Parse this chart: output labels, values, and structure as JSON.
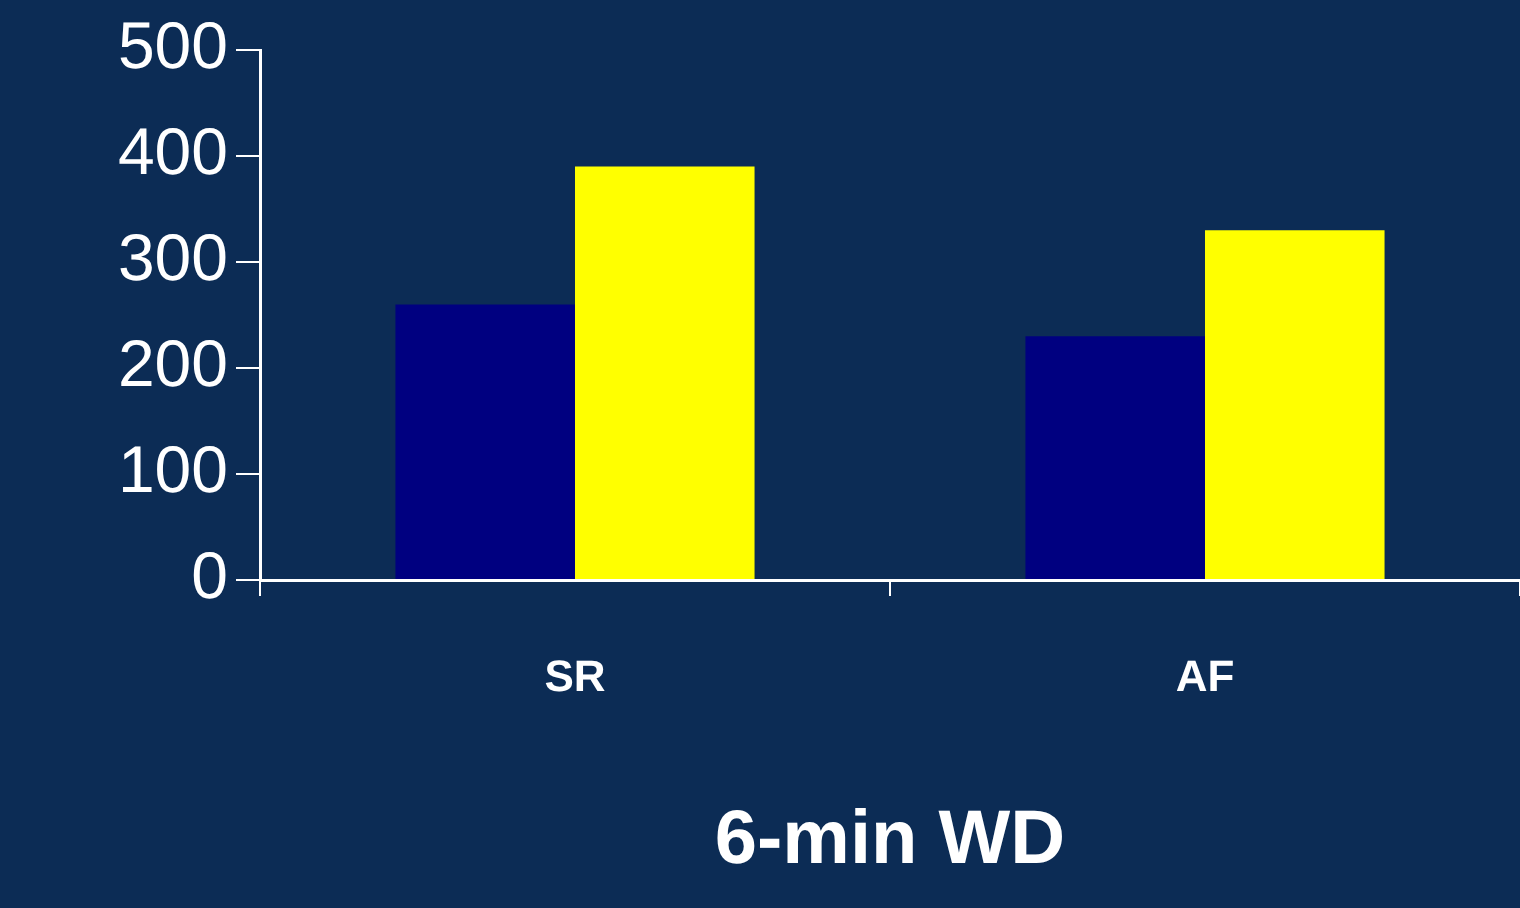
{
  "chart_data": {
    "type": "bar",
    "xlabel": "6-min WD",
    "categories": [
      "SR",
      "AF"
    ],
    "series": [
      {
        "color": "#000080",
        "values": [
          260,
          230
        ]
      },
      {
        "color": "#ffff00",
        "values": [
          390,
          330
        ]
      }
    ],
    "ylim": [
      0,
      500
    ],
    "yticks": [
      0,
      100,
      200,
      300,
      400,
      500
    ],
    "grid": false,
    "legend": false
  }
}
